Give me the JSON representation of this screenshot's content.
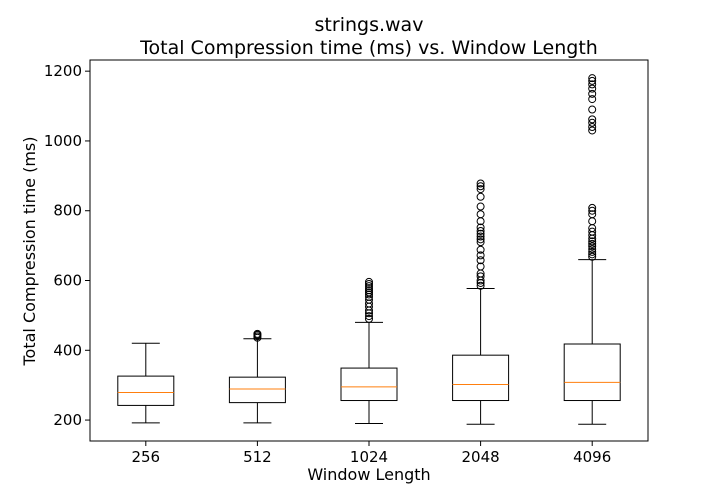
{
  "chart_data": {
    "type": "boxplot",
    "title_line1": "strings.wav",
    "title_line2": "Total Compression time (ms) vs. Window Length",
    "xlabel": "Window Length",
    "ylabel": "Total Compression time (ms)",
    "ylim": [
      140,
      1232
    ],
    "yticks": [
      200,
      400,
      600,
      800,
      1000,
      1200
    ],
    "grid": false,
    "median_color": "#ff7f0e",
    "box_color": "#000000",
    "categories": [
      "256",
      "512",
      "1024",
      "2048",
      "4096"
    ],
    "boxes": [
      {
        "label": "256",
        "whisker_low": 192,
        "q1": 242,
        "median": 279,
        "q3": 326,
        "whisker_high": 420,
        "outliers": []
      },
      {
        "label": "512",
        "whisker_low": 192,
        "q1": 250,
        "median": 289,
        "q3": 323,
        "whisker_high": 433,
        "outliers": [
          436,
          440,
          444,
          447
        ]
      },
      {
        "label": "1024",
        "whisker_low": 190,
        "q1": 256,
        "median": 295,
        "q3": 349,
        "whisker_high": 480,
        "outliers": [
          490,
          498,
          506,
          514,
          525,
          534,
          545,
          553,
          560,
          566,
          572,
          578,
          584,
          590,
          596
        ]
      },
      {
        "label": "2048",
        "whisker_low": 188,
        "q1": 256,
        "median": 302,
        "q3": 386,
        "whisker_high": 577,
        "outliers": [
          585,
          593,
          600,
          612,
          620,
          640,
          658,
          672,
          688,
          710,
          718,
          726,
          734,
          742,
          752,
          770,
          790,
          812,
          840,
          862,
          870,
          878
        ]
      },
      {
        "label": "4096",
        "whisker_low": 188,
        "q1": 256,
        "median": 308,
        "q3": 418,
        "whisker_high": 660,
        "outliers": [
          668,
          675,
          682,
          690,
          698,
          705,
          712,
          720,
          730,
          740,
          750,
          770,
          790,
          800,
          808,
          1030,
          1040,
          1052,
          1062,
          1090,
          1120,
          1135,
          1150,
          1162,
          1172,
          1180
        ]
      }
    ]
  }
}
